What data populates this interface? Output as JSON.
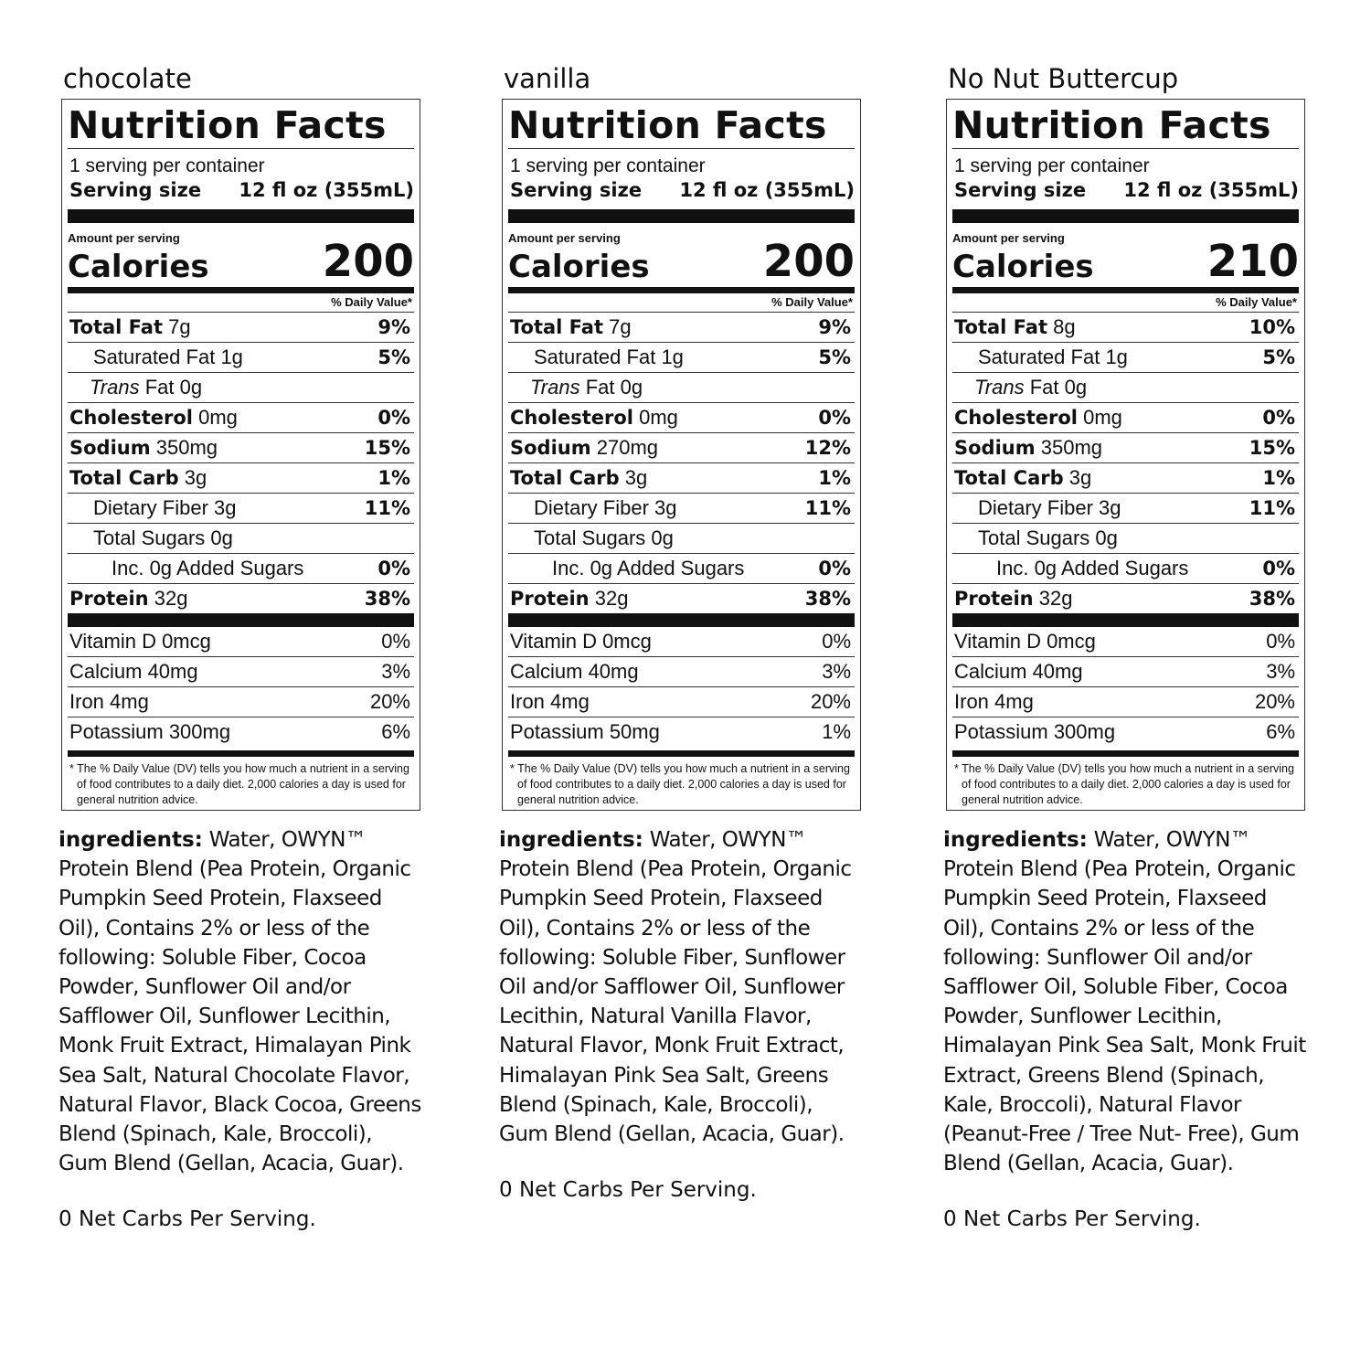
{
  "panels": [
    {
      "flavor": "chocolate",
      "title": "Nutrition Facts",
      "servings": "1 serving per container",
      "serving_size_label": "Serving size",
      "serving_size": "12 fl oz (355mL)",
      "amount_label": "Amount per serving",
      "calories_label": "Calories",
      "calories": "200",
      "dv_header": "% Daily Value*",
      "rows": [
        {
          "name": "Total Fat",
          "amount": "7g",
          "dv": "9%"
        },
        {
          "name": "Saturated Fat",
          "amount": "1g",
          "dv": "5%"
        },
        {
          "italic": "Trans",
          "name": "Fat",
          "amount": "0g"
        },
        {
          "name": "Cholesterol",
          "amount": "0mg",
          "dv": "0%"
        },
        {
          "name": "Sodium",
          "amount": "350mg",
          "dv": "15%"
        },
        {
          "name": "Total Carb",
          "amount": "3g",
          "dv": "1%"
        },
        {
          "name": "Dietary Fiber",
          "amount": "3g",
          "dv": "11%"
        },
        {
          "name": "Total Sugars",
          "amount": "0g"
        },
        {
          "name": "Inc. 0g Added Sugars",
          "dv": "0%"
        },
        {
          "name": "Protein",
          "amount": "32g",
          "dv": "38%"
        }
      ],
      "vitamins": [
        {
          "name": "Vitamin D 0mcg",
          "dv": "0%"
        },
        {
          "name": "Calcium 40mg",
          "dv": "3%"
        },
        {
          "name": "Iron 4mg",
          "dv": "20%"
        },
        {
          "name": "Potassium 300mg",
          "dv": "6%"
        }
      ],
      "footnote": "* The % Daily Value (DV) tells you how much a nutrient in a serving of food contributes to a daily diet. 2,000 calories a day is used for general nutrition advice.",
      "ingredients_label": "ingredients:",
      "ingredients": "Water, OWYN™ Protein Blend (Pea Protein, Organic Pumpkin Seed Protein, Flaxseed Oil), Contains 2% or less of the following: Soluble Fiber, Cocoa Powder, Sunflower Oil and/or Safflower Oil, Sunflower Lecithin, Monk Fruit Extract, Himalayan Pink Sea Salt, Natural Chocolate Flavor, Natural Flavor, Black Cocoa, Greens Blend (Spinach, Kale, Broccoli), Gum Blend (Gellan, Acacia, Guar).",
      "net_carbs": "0 Net Carbs Per Serving."
    },
    {
      "flavor": "vanilla",
      "title": "Nutrition Facts",
      "servings": "1 serving per container",
      "serving_size_label": "Serving size",
      "serving_size": "12 fl oz (355mL)",
      "amount_label": "Amount per serving",
      "calories_label": "Calories",
      "calories": "200",
      "dv_header": "% Daily Value*",
      "rows": [
        {
          "name": "Total Fat",
          "amount": "7g",
          "dv": "9%"
        },
        {
          "name": "Saturated Fat",
          "amount": "1g",
          "dv": "5%"
        },
        {
          "italic": "Trans",
          "name": "Fat",
          "amount": "0g"
        },
        {
          "name": "Cholesterol",
          "amount": "0mg",
          "dv": "0%"
        },
        {
          "name": "Sodium",
          "amount": "270mg",
          "dv": "12%"
        },
        {
          "name": "Total Carb",
          "amount": "3g",
          "dv": "1%"
        },
        {
          "name": "Dietary Fiber",
          "amount": "3g",
          "dv": "11%"
        },
        {
          "name": "Total Sugars",
          "amount": "0g"
        },
        {
          "name": "Inc. 0g Added Sugars",
          "dv": "0%"
        },
        {
          "name": "Protein",
          "amount": "32g",
          "dv": "38%"
        }
      ],
      "vitamins": [
        {
          "name": "Vitamin D 0mcg",
          "dv": "0%"
        },
        {
          "name": "Calcium 40mg",
          "dv": "3%"
        },
        {
          "name": "Iron 4mg",
          "dv": "20%"
        },
        {
          "name": "Potassium 50mg",
          "dv": "1%"
        }
      ],
      "footnote": "* The % Daily Value (DV) tells you how much a nutrient in a serving of food contributes to a daily diet. 2,000 calories a day is used for general nutrition advice.",
      "ingredients_label": "ingredients:",
      "ingredients": "Water, OWYN™ Protein Blend (Pea Protein, Organic Pumpkin Seed Protein, Flaxseed Oil), Contains 2% or less of the following: Soluble Fiber, Sunflower Oil and/or Safflower Oil, Sunflower Lecithin, Natural Vanilla Flavor, Natural Flavor, Monk Fruit Extract, Himalayan Pink Sea Salt, Greens Blend (Spinach, Kale, Broccoli), Gum Blend (Gellan, Acacia, Guar).",
      "net_carbs": "0 Net Carbs Per Serving."
    },
    {
      "flavor": "No Nut Buttercup",
      "title": "Nutrition Facts",
      "servings": "1 serving per container",
      "serving_size_label": "Serving size",
      "serving_size": "12 fl oz (355mL)",
      "amount_label": "Amount per serving",
      "calories_label": "Calories",
      "calories": "210",
      "dv_header": "% Daily Value*",
      "rows": [
        {
          "name": "Total Fat",
          "amount": "8g",
          "dv": "10%"
        },
        {
          "name": "Saturated Fat",
          "amount": "1g",
          "dv": "5%"
        },
        {
          "italic": "Trans",
          "name": "Fat",
          "amount": "0g"
        },
        {
          "name": "Cholesterol",
          "amount": "0mg",
          "dv": "0%"
        },
        {
          "name": "Sodium",
          "amount": "350mg",
          "dv": "15%"
        },
        {
          "name": "Total Carb",
          "amount": "3g",
          "dv": "1%"
        },
        {
          "name": "Dietary Fiber",
          "amount": "3g",
          "dv": "11%"
        },
        {
          "name": "Total Sugars",
          "amount": "0g"
        },
        {
          "name": "Inc. 0g Added Sugars",
          "dv": "0%"
        },
        {
          "name": "Protein",
          "amount": "32g",
          "dv": "38%"
        }
      ],
      "vitamins": [
        {
          "name": "Vitamin D 0mcg",
          "dv": "0%"
        },
        {
          "name": "Calcium 40mg",
          "dv": "3%"
        },
        {
          "name": "Iron 4mg",
          "dv": "20%"
        },
        {
          "name": "Potassium 300mg",
          "dv": "6%"
        }
      ],
      "footnote": "* The % Daily Value (DV) tells you how much a nutrient in a serving of food contributes to a daily diet. 2,000 calories a day is used for general nutrition advice.",
      "ingredients_label": "ingredients:",
      "ingredients": "Water, OWYN™ Protein Blend (Pea Protein, Organic Pumpkin Seed Protein, Flaxseed Oil), Contains 2% or less of the following: Sunflower Oil and/or Safflower Oil, Soluble Fiber, Cocoa Powder, Sunflower Lecithin, Himalayan Pink Sea Salt, Monk Fruit Extract, Greens Blend (Spinach, Kale, Broccoli), Natural Flavor (Peanut-Free / Tree Nut- Free), Gum Blend (Gellan, Acacia, Guar).",
      "net_carbs": "0 Net Carbs Per Serving."
    }
  ]
}
